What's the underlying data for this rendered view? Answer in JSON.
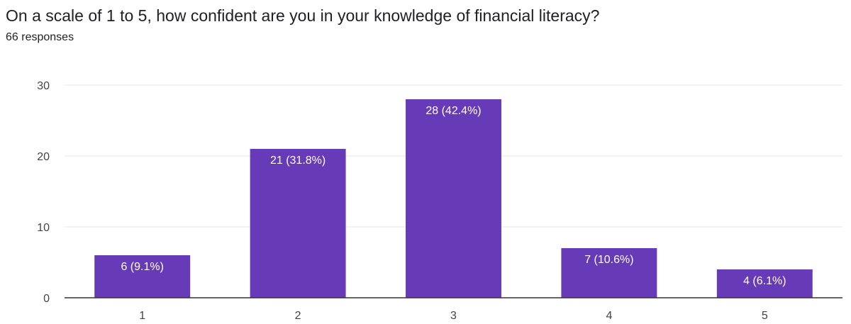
{
  "header": {
    "title": "On a scale of 1 to 5, how confident are you in your knowledge of financial literacy?",
    "subtitle": "66 responses"
  },
  "chart_data": {
    "type": "bar",
    "title": "On a scale of 1 to 5, how confident are you in your knowledge of financial literacy?",
    "subtitle": "66 responses",
    "xlabel": "",
    "ylabel": "",
    "categories": [
      "1",
      "2",
      "3",
      "4",
      "5"
    ],
    "values": [
      6,
      21,
      28,
      7,
      4
    ],
    "data_labels": [
      "6 (9.1%)",
      "21 (31.8%)",
      "28 (42.4%)",
      "7 (10.6%)",
      "4 (6.1%)"
    ],
    "ylim": [
      0,
      30
    ],
    "yticks": [
      0,
      10,
      20,
      30
    ],
    "grid": true,
    "legend": "none",
    "bar_color": "#673ab7",
    "grid_color": "#e6e6e6",
    "axis_color": "#333333"
  }
}
